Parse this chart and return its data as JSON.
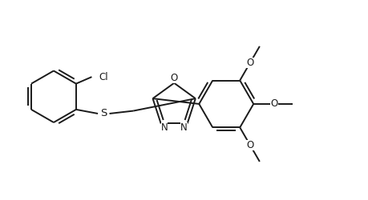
{
  "background_color": "#ffffff",
  "line_color": "#1a1a1a",
  "line_width": 1.4,
  "font_size": 8.5,
  "figsize": [
    4.6,
    2.5
  ],
  "dpi": 100,
  "xlim": [
    -2.5,
    2.9
  ],
  "ylim": [
    -1.35,
    1.45
  ]
}
